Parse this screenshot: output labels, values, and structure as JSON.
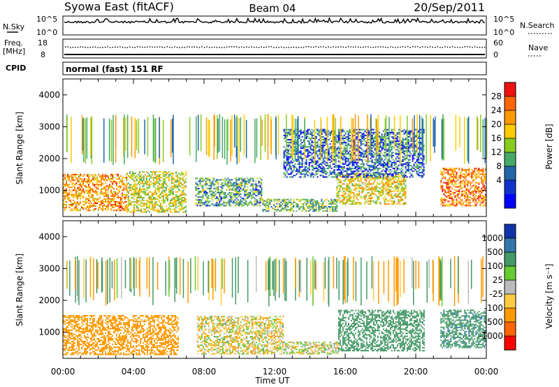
{
  "header": {
    "title": "Syowa East (fitACF)",
    "beam": "Beam 04",
    "date": "20/Sep/2011"
  },
  "status_panels": {
    "nsky_label": "N.Sky",
    "nsearch_label": "N.Search",
    "noise_ticks": [
      "10^5",
      "10^0"
    ],
    "freq_label": "Freq.",
    "freq_unit": "[MHz]",
    "freq_ticks": [
      "18",
      "8"
    ],
    "nave_label": "Nave",
    "nave_ticks": [
      "60",
      "0"
    ],
    "cpid_label": "CPID",
    "cpid_text": "normal (fast) 151 RF"
  },
  "chart_data": [
    {
      "type": "heatmap",
      "name": "power",
      "ylabel": "Slant Range [km]",
      "yticks": [
        "4000",
        "3000",
        "2000",
        "1000"
      ],
      "ylim": [
        180,
        4500
      ],
      "colorbar_label": "Power [dB]",
      "colorbar_ticks": [
        "28",
        "24",
        "20",
        "16",
        "12",
        "8",
        "4"
      ],
      "colorbar_colors": [
        "#ee1111",
        "#ff6600",
        "#ff9900",
        "#ffcc00",
        "#88cc22",
        "#44aa66",
        "#2266aa",
        "#1133cc",
        "#0000ff"
      ],
      "regions": [
        {
          "start": 0.0,
          "end": 3.6,
          "lo": 350,
          "hi": 1500,
          "level": 22
        },
        {
          "start": 3.6,
          "end": 7.0,
          "lo": 300,
          "hi": 1600,
          "level": 16
        },
        {
          "start": 7.5,
          "end": 11.3,
          "lo": 500,
          "hi": 1400,
          "level": 10
        },
        {
          "start": 11.3,
          "end": 15.5,
          "lo": 330,
          "hi": 700,
          "level": 12
        },
        {
          "start": 15.5,
          "end": 19.4,
          "lo": 550,
          "hi": 1500,
          "level": 18
        },
        {
          "start": 12.5,
          "end": 20.5,
          "lo": 1400,
          "hi": 2900,
          "level": 6
        },
        {
          "start": 21.4,
          "end": 24.0,
          "lo": 500,
          "hi": 1700,
          "level": 24
        }
      ]
    },
    {
      "type": "heatmap",
      "name": "velocity",
      "ylabel": "Slant Range [km]",
      "yticks": [
        "4000",
        "3000",
        "2000",
        "1000"
      ],
      "ylim": [
        180,
        4500
      ],
      "colorbar_label": "Velocity [m s⁻¹]",
      "colorbar_ticks": [
        "1000",
        "500",
        "100",
        "25",
        "-25",
        "-100",
        "-500",
        "-1000"
      ],
      "colorbar_colors": [
        "#1133aa",
        "#3377aa",
        "#449966",
        "#66cc33",
        "#bbbbbb",
        "#ffcc44",
        "#ff9900",
        "#ff6600",
        "#ff0000"
      ],
      "regions": [
        {
          "start": 0.0,
          "end": 6.5,
          "lo": 280,
          "hi": 1500,
          "level": -250
        },
        {
          "start": 7.6,
          "end": 12.5,
          "lo": 300,
          "hi": 1500,
          "level": -40
        },
        {
          "start": 12.5,
          "end": 15.6,
          "lo": 300,
          "hi": 700,
          "level": 0
        },
        {
          "start": 15.6,
          "end": 20.5,
          "lo": 400,
          "hi": 1700,
          "level": 300
        },
        {
          "start": 21.4,
          "end": 24.0,
          "lo": 500,
          "hi": 1700,
          "level": 400
        }
      ]
    }
  ],
  "x_axis": {
    "ticks": [
      "00:00",
      "04:00",
      "08:00",
      "12:00",
      "16:00",
      "20:00",
      "00:00"
    ],
    "label": "Time UT",
    "range": [
      0,
      24
    ]
  }
}
